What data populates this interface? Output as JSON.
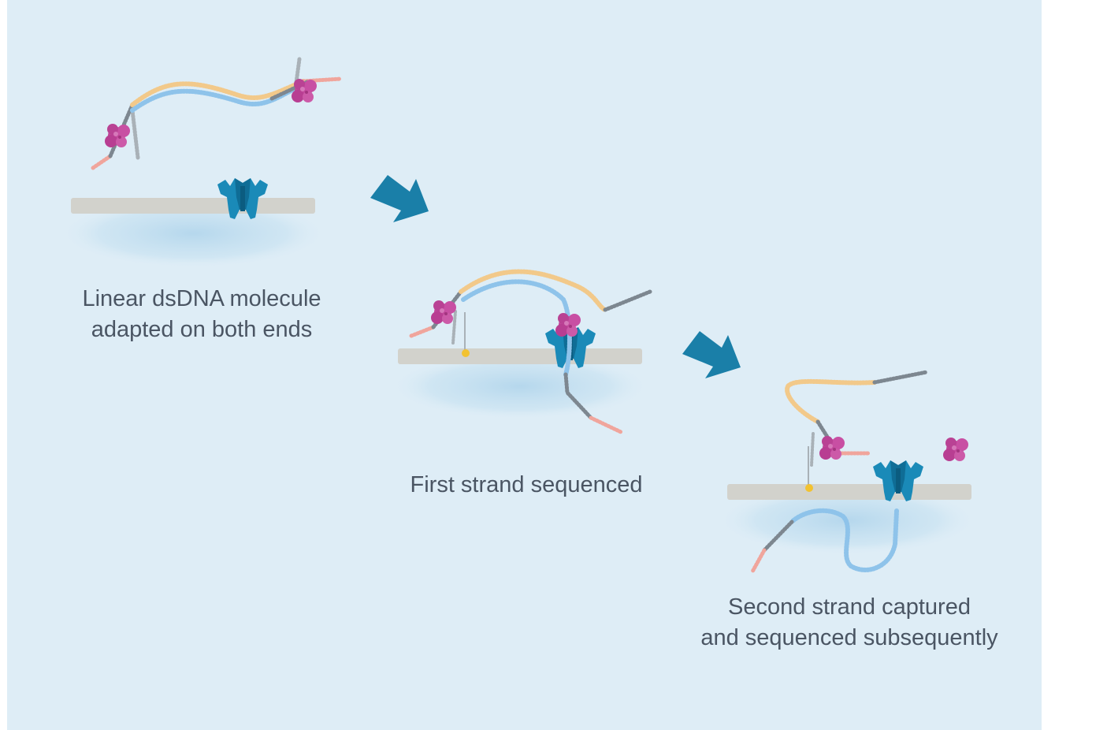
{
  "steps": [
    {
      "caption_lines": [
        "Linear dsDNA molecule",
        "adapted on both ends"
      ]
    },
    {
      "caption_lines": [
        "First strand sequenced"
      ]
    },
    {
      "caption_lines": [
        "Second strand captured",
        "and sequenced subsequently"
      ]
    }
  ],
  "colors": {
    "background": "#deedf6",
    "membrane": "#d2d2cc",
    "pore": "#1a8ab8",
    "pore_dark": "#0f6d96",
    "motor_protein": "#c2479b",
    "strand_template": "#f2c98a",
    "strand_complement": "#8ec3ea",
    "adapter": "#7d8790",
    "leader": "#f0a59c",
    "tether": "#f2c230",
    "arrow": "#1a7fa8",
    "text": "#4a5563"
  },
  "icons": [
    "arrow-right-down-icon",
    "nanopore-icon",
    "motor-protein-icon",
    "membrane-icon",
    "tether-icon"
  ]
}
